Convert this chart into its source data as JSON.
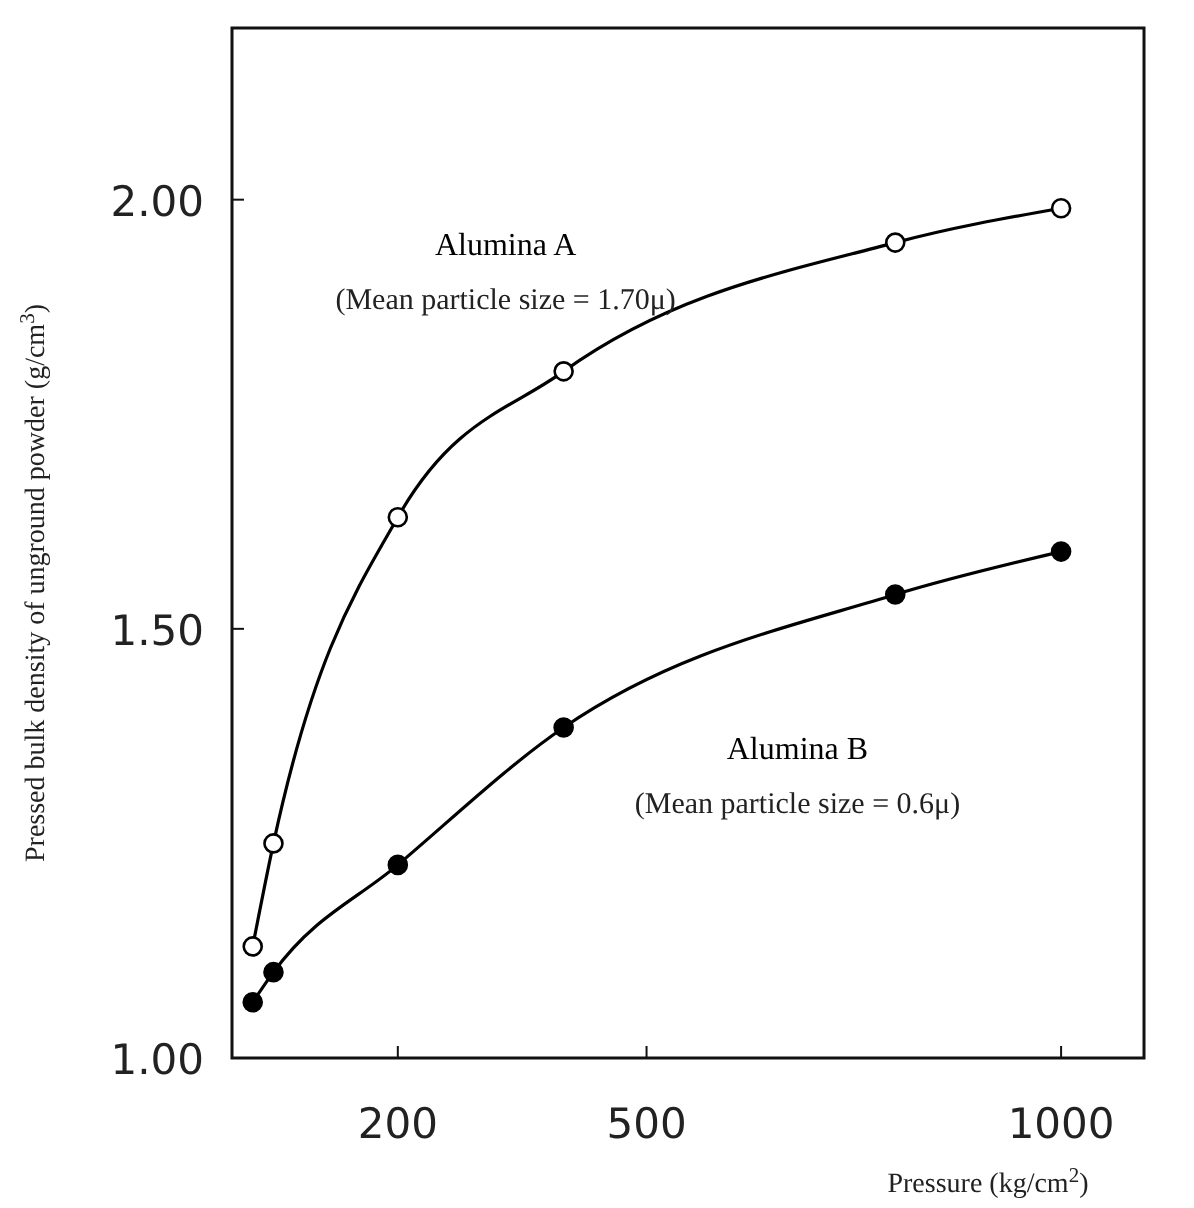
{
  "chart_data": {
    "type": "line",
    "xlabel": "Pressure (kg/cm$^{2}$)",
    "ylabel": "Pressed bulk density of unground powder (g/cm$^{3}$)",
    "xlim": [
      0,
      1100
    ],
    "xticks": [
      200,
      500,
      1000
    ],
    "ylim": [
      1.0,
      2.2
    ],
    "yticks": [
      {
        "value": 1.0,
        "label": "1.00"
      },
      {
        "value": 1.5,
        "label": "1.50"
      },
      {
        "value": 2.0,
        "label": "2.00"
      }
    ],
    "grid": false,
    "marker": "circle",
    "series": [
      {
        "name": "Alumina A",
        "color": "#000000",
        "x": [
          25,
          50,
          200,
          400,
          800,
          1000
        ],
        "values": [
          1.13,
          1.25,
          1.63,
          1.8,
          1.95,
          1.99
        ]
      },
      {
        "name": "Alumina B",
        "color": "#000000",
        "x": [
          25,
          50,
          200,
          400,
          800,
          1000
        ],
        "values": [
          1.065,
          1.1,
          1.225,
          1.385,
          1.54,
          1.59
        ]
      }
    ],
    "annotations": [
      "(Mean particle size = 1.70μ)",
      "(Mean particle size = 0.6μ)"
    ]
  }
}
